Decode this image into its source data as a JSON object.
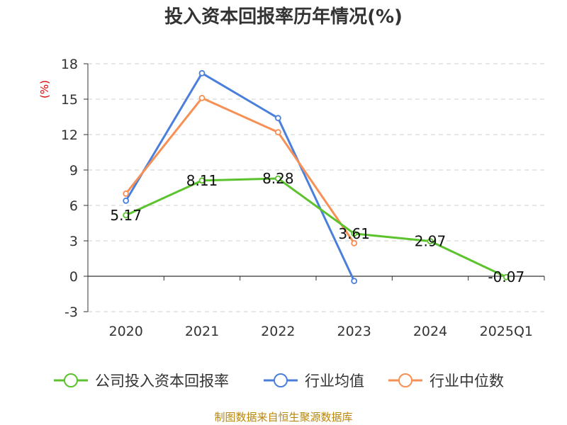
{
  "chart_data": {
    "type": "line",
    "title": "投入资本回报率历年情况(%)",
    "ylabel": "(%)",
    "xlabel": "",
    "categories": [
      "2020",
      "2021",
      "2022",
      "2023",
      "2024",
      "2025Q1"
    ],
    "ylim": [
      -3,
      18
    ],
    "yticks": [
      -3,
      0,
      3,
      6,
      9,
      12,
      15,
      18
    ],
    "grid": true,
    "legend_position": "bottom",
    "series": [
      {
        "name": "公司投入资本回报率",
        "color": "#5cc22d",
        "values": [
          5.17,
          8.11,
          8.28,
          3.61,
          2.97,
          -0.07
        ],
        "labels": [
          "5.17",
          "8.11",
          "8.28",
          "3.61",
          "2.97",
          "-0.07"
        ]
      },
      {
        "name": "行业均值",
        "color": "#4a7fdb",
        "values": [
          6.4,
          17.2,
          13.4,
          -0.4,
          null,
          null
        ]
      },
      {
        "name": "行业中位数",
        "color": "#f79055",
        "values": [
          7.0,
          15.1,
          12.2,
          2.8,
          null,
          null
        ]
      }
    ]
  },
  "source": "制图数据来自恒生聚源数据库"
}
